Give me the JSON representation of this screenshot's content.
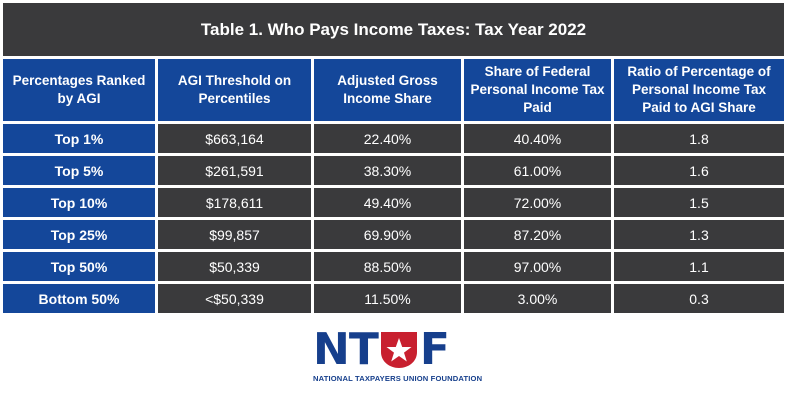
{
  "table": {
    "title": "Table 1. Who Pays Income Taxes: Tax Year 2022",
    "headers": [
      "Percentages Ranked by AGI",
      "AGI Threshold on Percentiles",
      "Adjusted Gross Income Share",
      "Share of Federal Personal Income Tax Paid",
      "Ratio of Percentage of Personal Income Tax Paid to AGI Share"
    ],
    "rows": [
      [
        "Top 1%",
        "$663,164",
        "22.40%",
        "40.40%",
        "1.8"
      ],
      [
        "Top 5%",
        "$261,591",
        "38.30%",
        "61.00%",
        "1.6"
      ],
      [
        "Top 10%",
        "$178,611",
        "49.40%",
        "72.00%",
        "1.5"
      ],
      [
        "Top 25%",
        "$99,857",
        "69.90%",
        "87.20%",
        "1.3"
      ],
      [
        "Top 50%",
        "$50,339",
        "88.50%",
        "97.00%",
        "1.1"
      ],
      [
        "Bottom 50%",
        "<$50,339",
        "11.50%",
        "3.00%",
        "0.3"
      ]
    ]
  },
  "logo": {
    "mark_left": "NT",
    "mark_right": "F",
    "name": "NATIONAL TAXPAYERS UNION FOUNDATION",
    "colors": {
      "blue": "#163f8c",
      "red": "#c8202f"
    }
  },
  "colors": {
    "header_blue": "#14479a",
    "cell_dark": "#3a3a3c",
    "text": "#ffffff"
  }
}
